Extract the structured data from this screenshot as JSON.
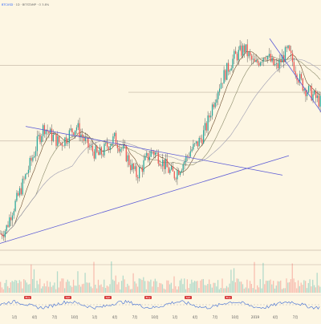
{
  "legend": {
    "symbol": "BTCUSD",
    "text": "· 1D · BITSTAMP · O 3.8%"
  },
  "colors": {
    "background": "#fdf6e3",
    "up": "#26a69a",
    "down": "#ef5350",
    "wick": "#333333",
    "trendline": "#5b5bd6",
    "hline": "#b0a090",
    "ma_fast": "#6a4a2a",
    "ma_mid": "#8a8a6a",
    "ma_slow": "#9a9ab0",
    "oscillator": "#3a6ad6",
    "badge_bg": "#d93a3a"
  },
  "x_tick_labels": [
    "1月",
    "4月",
    "7月",
    "10月",
    "1月",
    "4月",
    "7月",
    "10月",
    "1月",
    "4月",
    "7月",
    "10月",
    "2019",
    "4月",
    "7月"
  ],
  "badges": [
    "Buy",
    "Sell",
    "Sell",
    "Buy",
    "Sell",
    "Buy"
  ],
  "chart_data": {
    "type": "candlestick",
    "title": "",
    "series_note": "",
    "price_path": [
      0.16,
      0.18,
      0.25,
      0.3,
      0.36,
      0.42,
      0.48,
      0.55,
      0.6,
      0.57,
      0.55,
      0.53,
      0.55,
      0.58,
      0.6,
      0.56,
      0.52,
      0.5,
      0.48,
      0.5,
      0.53,
      0.55,
      0.52,
      0.49,
      0.44,
      0.4,
      0.43,
      0.47,
      0.5,
      0.48,
      0.45,
      0.42,
      0.4,
      0.43,
      0.46,
      0.5,
      0.52,
      0.55,
      0.6,
      0.68,
      0.75,
      0.8,
      0.84,
      0.88,
      0.9,
      0.92,
      0.88,
      0.85,
      0.88,
      0.9,
      0.86,
      0.84,
      0.88,
      0.91,
      0.86,
      0.8,
      0.76,
      0.74,
      0.72,
      0.7
    ],
    "trendlines": [
      {
        "from": [
          0.08,
          0.6
        ],
        "to": [
          0.88,
          0.4
        ]
      },
      {
        "from": [
          0.0,
          0.12
        ],
        "to": [
          0.9,
          0.48
        ]
      },
      {
        "from": [
          0.84,
          0.96
        ],
        "to": [
          1.0,
          0.66
        ]
      }
    ],
    "horizontal_levels": [
      0.85,
      0.74,
      0.54
    ]
  }
}
